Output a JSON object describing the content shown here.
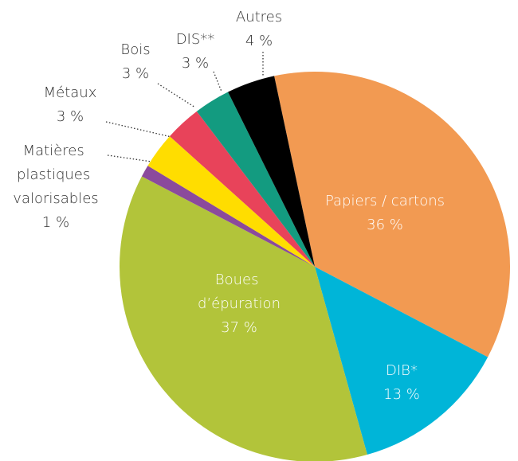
{
  "chart_data": {
    "type": "pie",
    "categories": [
      "Papiers / cartons",
      "DIB*",
      "Boues d’épuration",
      "Matières plastiques valorisables",
      "Métaux",
      "Bois",
      "DIS**",
      "Autres"
    ],
    "values": [
      36,
      13,
      37,
      1,
      3,
      3,
      3,
      4
    ],
    "value_labels": [
      "36 %",
      "13 %",
      "37 %",
      "1 %",
      "3 %",
      "3 %",
      "3 %",
      "4 %"
    ],
    "colors": [
      "#f29a52",
      "#00b5d8",
      "#b2c43a",
      "#8b4a9c",
      "#ffdd00",
      "#e8435a",
      "#139b80",
      "#000000"
    ]
  }
}
